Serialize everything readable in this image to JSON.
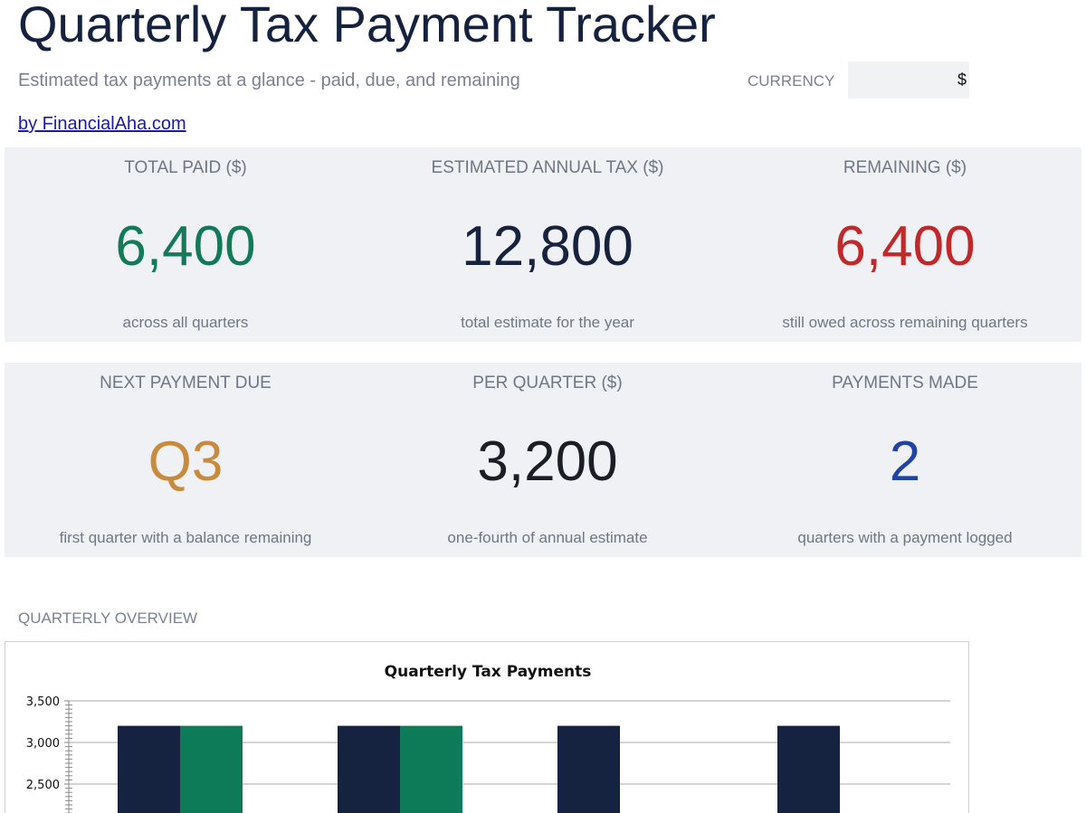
{
  "header": {
    "title": "Quarterly Tax Payment Tracker",
    "subtitle": "Estimated tax payments at a glance - paid, due, and remaining",
    "byline": "by FinancialAha.com",
    "currency_label": "CURRENCY",
    "currency_value": "$"
  },
  "kpis": {
    "row1": [
      {
        "label": "TOTAL PAID ($)",
        "value": "6,400",
        "caption": "across all quarters",
        "color": "#137a57"
      },
      {
        "label": "ESTIMATED ANNUAL TAX ($)",
        "value": "12,800",
        "caption": "total estimate for the year",
        "color": "#17223f"
      },
      {
        "label": "REMAINING ($)",
        "value": "6,400",
        "caption": "still owed across remaining quarters",
        "color": "#c0282a"
      }
    ],
    "row2": [
      {
        "label": "NEXT PAYMENT DUE",
        "value": "Q3",
        "caption": "first quarter with a balance remaining",
        "color": "#c88a3d"
      },
      {
        "label": "PER QUARTER ($)",
        "value": "3,200",
        "caption": "one-fourth of annual estimate",
        "color": "#1b1e26"
      },
      {
        "label": "PAYMENTS MADE",
        "value": "2",
        "caption": "quarters with a payment logged",
        "color": "#2043a8"
      }
    ]
  },
  "overview": {
    "section_label": "QUARTERLY OVERVIEW"
  },
  "chart_data": {
    "type": "bar",
    "title": "Quarterly Tax Payments",
    "xlabel": "",
    "ylabel": "",
    "ylim": [
      2500,
      3500
    ],
    "yticks": [
      2500,
      3000,
      3500
    ],
    "ytick_labels": [
      "2,500",
      "3,000",
      "3,500"
    ],
    "groups": 4,
    "series": [
      {
        "values": [
          3200,
          3200,
          3200,
          3200
        ],
        "color": "#162340"
      },
      {
        "values": [
          3200,
          3200,
          null,
          null
        ],
        "color": "#0e7b58"
      }
    ],
    "grid": true
  }
}
